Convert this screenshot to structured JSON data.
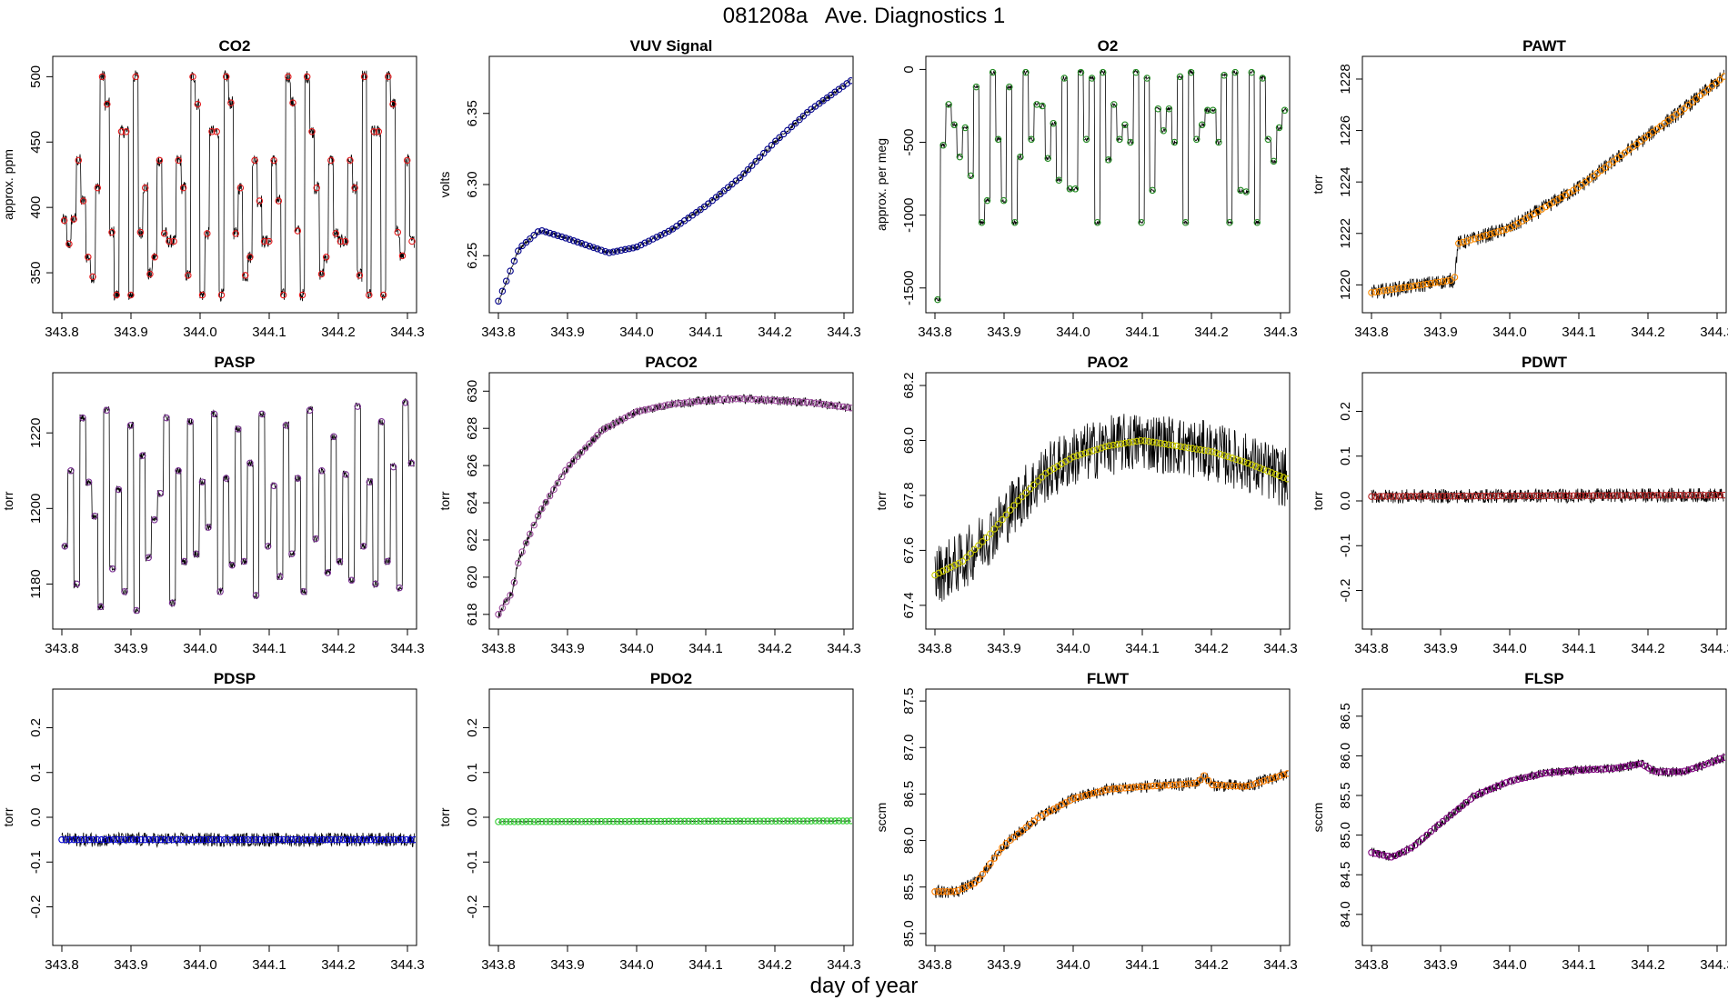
{
  "title": "081208a   Ave. Diagnostics 1",
  "xlabel": "day of year",
  "chart_data": [
    {
      "type": "line",
      "title": "CO2",
      "ylabel": "approx. ppm",
      "xlim": [
        343.8,
        344.3
      ],
      "ylim": [
        325,
        510
      ],
      "xticks": [
        "343.8",
        "343.9",
        "344.0",
        "344.1",
        "344.2",
        "344.3"
      ],
      "yticks": [
        350,
        400,
        450,
        500
      ],
      "ytick_labels": [
        "350",
        "400",
        "450",
        "500"
      ],
      "marker_color": "#e41a1c",
      "trend": {
        "kind": "cycle",
        "values": [
          390,
          372,
          391,
          436,
          405,
          362,
          347,
          415,
          500,
          479,
          381,
          333,
          458,
          458,
          333,
          500,
          381,
          415,
          349,
          362,
          436,
          380,
          374,
          374,
          436,
          415,
          348,
          500,
          479,
          333,
          380,
          458,
          458,
          333,
          500,
          480,
          380,
          415,
          348,
          362,
          436,
          405,
          374,
          374,
          436,
          405,
          333,
          500,
          480,
          382,
          333,
          500,
          458,
          415,
          349,
          362,
          436,
          380,
          374,
          374,
          436,
          415,
          348,
          500,
          333,
          458,
          458,
          333,
          500,
          479,
          381,
          363,
          436,
          374
        ]
      },
      "noise": 5
    },
    {
      "type": "line",
      "title": "VUV Signal",
      "ylabel": "volts",
      "xlim": [
        343.8,
        344.3
      ],
      "ylim": [
        6.215,
        6.385
      ],
      "xticks": [
        "343.8",
        "343.9",
        "344.0",
        "344.1",
        "344.2",
        "344.3"
      ],
      "yticks": [
        6.25,
        6.3,
        6.35
      ],
      "ytick_labels": [
        "6.25",
        "6.30",
        "6.35"
      ],
      "marker_color": "#00008b",
      "trend": {
        "kind": "knots",
        "values": [
          [
            343.8,
            6.218
          ],
          [
            343.83,
            6.255
          ],
          [
            343.86,
            6.268
          ],
          [
            343.9,
            6.262
          ],
          [
            343.96,
            6.252
          ],
          [
            344.0,
            6.256
          ],
          [
            344.05,
            6.268
          ],
          [
            344.1,
            6.285
          ],
          [
            344.15,
            6.305
          ],
          [
            344.2,
            6.33
          ],
          [
            344.25,
            6.352
          ],
          [
            344.31,
            6.373
          ]
        ]
      },
      "noise": 0.0015
    },
    {
      "type": "line",
      "title": "O2",
      "ylabel": "approx. per meg",
      "xlim": [
        343.8,
        344.3
      ],
      "ylim": [
        -1620,
        40
      ],
      "xticks": [
        "343.8",
        "343.9",
        "344.0",
        "344.1",
        "344.2",
        "344.3"
      ],
      "yticks": [
        -1500,
        -1000,
        -500,
        0
      ],
      "ytick_labels": [
        "-1500",
        "-1000",
        "-500",
        "0"
      ],
      "marker_color": "#228b22",
      "trend": {
        "kind": "cycle",
        "values": [
          -1580,
          -520,
          -240,
          -380,
          -600,
          -400,
          -730,
          -120,
          -1050,
          -900,
          -20,
          -480,
          -900,
          -120,
          -1050,
          -600,
          -20,
          -480,
          -240,
          -250,
          -610,
          -370,
          -760,
          -60,
          -820,
          -820,
          -20,
          -480,
          -60,
          -1050,
          -20,
          -620,
          -240,
          -480,
          -380,
          -500,
          -20,
          -1050,
          -60,
          -830,
          -270,
          -420,
          -270,
          -500,
          -50,
          -1050,
          -20,
          -480,
          -380,
          -280,
          -280,
          -500,
          -40,
          -1050,
          -20,
          -830,
          -840,
          -20,
          -1050,
          -60,
          -480,
          -630,
          -400,
          -280
        ]
      },
      "noise": 15
    },
    {
      "type": "line",
      "title": "PAWT",
      "ylabel": "torr",
      "xlim": [
        343.8,
        344.3
      ],
      "ylim": [
        1219.2,
        1228.6
      ],
      "xticks": [
        "343.8",
        "343.9",
        "344.0",
        "344.1",
        "344.2",
        "344.3"
      ],
      "yticks": [
        1220,
        1222,
        1224,
        1226,
        1228
      ],
      "ytick_labels": [
        "1220",
        "1222",
        "1224",
        "1226",
        "1228"
      ],
      "marker_color": "#ff8c00",
      "trend": {
        "kind": "knots",
        "values": [
          [
            343.8,
            1219.7
          ],
          [
            343.92,
            1220.2
          ],
          [
            343.925,
            1221.6
          ],
          [
            344.0,
            1222.2
          ],
          [
            344.1,
            1223.8
          ],
          [
            344.2,
            1225.8
          ],
          [
            344.25,
            1226.8
          ],
          [
            344.31,
            1228.1
          ]
        ]
      },
      "noise": 0.3
    },
    {
      "type": "line",
      "title": "PASP",
      "ylabel": "torr",
      "xlim": [
        343.8,
        344.3
      ],
      "ylim": [
        1170,
        1234
      ],
      "xticks": [
        "343.8",
        "343.9",
        "344.0",
        "344.1",
        "344.2",
        "344.3"
      ],
      "yticks": [
        1180,
        1200,
        1220
      ],
      "ytick_labels": [
        "1180",
        "1200",
        "1220"
      ],
      "marker_color": "#7b3294",
      "trend": {
        "kind": "cycle",
        "values": [
          1190,
          1210,
          1180,
          1224,
          1207,
          1198,
          1174,
          1226,
          1184,
          1205,
          1178,
          1222,
          1173,
          1214,
          1187,
          1197,
          1204,
          1224,
          1175,
          1210,
          1186,
          1223,
          1188,
          1207,
          1195,
          1225,
          1178,
          1208,
          1185,
          1221,
          1186,
          1212,
          1177,
          1225,
          1190,
          1206,
          1182,
          1222,
          1188,
          1208,
          1178,
          1226,
          1192,
          1210,
          1183,
          1219,
          1186,
          1209,
          1181,
          1227,
          1190,
          1207,
          1180,
          1223,
          1186,
          1211,
          1179,
          1228,
          1212
        ]
      },
      "noise": 1
    },
    {
      "type": "line",
      "title": "PACO2",
      "ylabel": "torr",
      "xlim": [
        343.8,
        344.3
      ],
      "ylim": [
        617.6,
        630.6
      ],
      "xticks": [
        "343.8",
        "343.9",
        "344.0",
        "344.1",
        "344.2",
        "344.3"
      ],
      "yticks": [
        618,
        620,
        622,
        624,
        626,
        628,
        630
      ],
      "ytick_labels": [
        "618",
        "620",
        "622",
        "624",
        "626",
        "628",
        "630"
      ],
      "marker_color": "#a050a0",
      "trend": {
        "kind": "knots",
        "values": [
          [
            343.8,
            618.0
          ],
          [
            343.82,
            619.2
          ],
          [
            343.83,
            621.0
          ],
          [
            343.86,
            623.5
          ],
          [
            343.9,
            625.9
          ],
          [
            343.95,
            627.9
          ],
          [
            344.0,
            628.9
          ],
          [
            344.05,
            629.3
          ],
          [
            344.1,
            629.5
          ],
          [
            344.15,
            629.6
          ],
          [
            344.2,
            629.5
          ],
          [
            344.25,
            629.4
          ],
          [
            344.31,
            629.1
          ]
        ]
      },
      "noise": 0.25
    },
    {
      "type": "line",
      "title": "PAO2",
      "ylabel": "torr",
      "xlim": [
        343.8,
        344.3
      ],
      "ylim": [
        67.34,
        68.22
      ],
      "xticks": [
        "343.8",
        "343.9",
        "344.0",
        "344.1",
        "344.2",
        "344.3"
      ],
      "yticks": [
        67.4,
        67.6,
        67.8,
        68.0,
        68.2
      ],
      "ytick_labels": [
        "67.4",
        "67.6",
        "67.8",
        "68.0",
        "68.2"
      ],
      "marker_color": "#cccc00",
      "trend": {
        "kind": "knots",
        "values": [
          [
            343.8,
            67.51
          ],
          [
            343.84,
            67.56
          ],
          [
            343.88,
            67.66
          ],
          [
            343.92,
            67.78
          ],
          [
            343.96,
            67.88
          ],
          [
            344.0,
            67.94
          ],
          [
            344.05,
            67.98
          ],
          [
            344.1,
            68.0
          ],
          [
            344.15,
            67.98
          ],
          [
            344.2,
            67.96
          ],
          [
            344.25,
            67.92
          ],
          [
            344.31,
            67.86
          ]
        ]
      },
      "noise": 0.11
    },
    {
      "type": "line",
      "title": "PDWT",
      "ylabel": "torr",
      "xlim": [
        343.8,
        344.3
      ],
      "ylim": [
        -0.27,
        0.27
      ],
      "xticks": [
        "343.8",
        "343.9",
        "344.0",
        "344.1",
        "344.2",
        "344.3"
      ],
      "yticks": [
        -0.2,
        -0.1,
        0.0,
        0.1,
        0.2
      ],
      "ytick_labels": [
        "-0.2",
        "-0.1",
        "0.0",
        "0.1",
        "0.2"
      ],
      "marker_color": "#b22222",
      "trend": {
        "kind": "knots",
        "values": [
          [
            343.8,
            0.01
          ],
          [
            344.31,
            0.013
          ]
        ]
      },
      "noise": 0.016
    },
    {
      "type": "line",
      "title": "PDSP",
      "ylabel": "torr",
      "xlim": [
        343.8,
        344.3
      ],
      "ylim": [
        -0.27,
        0.27
      ],
      "xticks": [
        "343.8",
        "343.9",
        "344.0",
        "344.1",
        "344.2",
        "344.3"
      ],
      "yticks": [
        -0.2,
        -0.1,
        0.0,
        0.1,
        0.2
      ],
      "ytick_labels": [
        "-0.2",
        "-0.1",
        "0.0",
        "0.1",
        "0.2"
      ],
      "marker_color": "#0000cd",
      "trend": {
        "kind": "knots",
        "values": [
          [
            343.8,
            -0.05
          ],
          [
            344.31,
            -0.05
          ]
        ]
      },
      "noise": 0.016
    },
    {
      "type": "line",
      "title": "PDO2",
      "ylabel": "torr",
      "xlim": [
        343.8,
        344.3
      ],
      "ylim": [
        -0.27,
        0.27
      ],
      "xticks": [
        "343.8",
        "343.9",
        "344.0",
        "344.1",
        "344.2",
        "344.3"
      ],
      "yticks": [
        -0.2,
        -0.1,
        0.0,
        0.1,
        0.2
      ],
      "ytick_labels": [
        "-0.2",
        "-0.1",
        "0.0",
        "0.1",
        "0.2"
      ],
      "marker_color": "#32cd32",
      "trend": {
        "kind": "knots",
        "values": [
          [
            343.8,
            -0.01
          ],
          [
            344.31,
            -0.008
          ]
        ]
      },
      "noise": 0.001
    },
    {
      "type": "line",
      "title": "FLWT",
      "ylabel": "sccm",
      "xlim": [
        343.8,
        344.3
      ],
      "ylim": [
        84.95,
        87.55
      ],
      "xticks": [
        "343.8",
        "343.9",
        "344.0",
        "344.1",
        "344.2",
        "344.3"
      ],
      "yticks": [
        85.0,
        85.5,
        86.0,
        86.5,
        87.0,
        87.5
      ],
      "ytick_labels": [
        "85.0",
        "85.5",
        "86.0",
        "86.5",
        "87.0",
        "87.5"
      ],
      "marker_color": "#ff7f00",
      "trend": {
        "kind": "knots",
        "values": [
          [
            343.8,
            85.45
          ],
          [
            343.83,
            85.45
          ],
          [
            343.86,
            85.55
          ],
          [
            343.9,
            85.95
          ],
          [
            343.95,
            86.25
          ],
          [
            344.0,
            86.45
          ],
          [
            344.05,
            86.55
          ],
          [
            344.1,
            86.58
          ],
          [
            344.15,
            86.6
          ],
          [
            344.18,
            86.62
          ],
          [
            344.19,
            86.7
          ],
          [
            344.2,
            86.6
          ],
          [
            344.25,
            86.58
          ],
          [
            344.31,
            86.72
          ]
        ]
      },
      "noise": 0.07
    },
    {
      "type": "line",
      "title": "FLSP",
      "ylabel": "sccm",
      "xlim": [
        343.8,
        344.3
      ],
      "ylim": [
        83.7,
        86.75
      ],
      "xticks": [
        "343.8",
        "343.9",
        "344.0",
        "344.1",
        "344.2",
        "344.3"
      ],
      "yticks": [
        84.0,
        84.5,
        85.0,
        85.5,
        86.0,
        86.5
      ],
      "ytick_labels": [
        "84.0",
        "84.5",
        "85.0",
        "85.5",
        "86.0",
        "86.5"
      ],
      "marker_color": "#800080",
      "trend": {
        "kind": "knots",
        "values": [
          [
            343.8,
            84.78
          ],
          [
            343.83,
            84.72
          ],
          [
            343.86,
            84.85
          ],
          [
            343.9,
            85.15
          ],
          [
            343.95,
            85.5
          ],
          [
            344.0,
            85.68
          ],
          [
            344.05,
            85.78
          ],
          [
            344.1,
            85.82
          ],
          [
            344.15,
            85.84
          ],
          [
            344.19,
            85.9
          ],
          [
            344.21,
            85.8
          ],
          [
            344.25,
            85.8
          ],
          [
            344.28,
            85.88
          ],
          [
            344.31,
            85.98
          ]
        ]
      },
      "noise": 0.06
    }
  ]
}
